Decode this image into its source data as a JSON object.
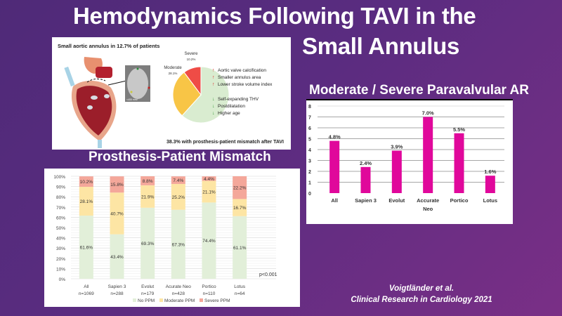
{
  "title": {
    "line1": "Hemodynamics Following TAVI in the",
    "line2": "Small Annulus"
  },
  "colors": {
    "background": "#5a2c80",
    "no_ppm": "#e2efd9",
    "moderate_ppm": "#fde5a4",
    "severe_ppm": "#f4a79a",
    "par_bar": "#e0089b",
    "pie_none": "#d9ecd0",
    "pie_moderate": "#f8c546",
    "pie_severe": "#ef4c46"
  },
  "summary": {
    "heading": "Small aortic annulus in 12.7% of patients",
    "pie_labels": {
      "severe": "Severe",
      "severe_value": "10.2%",
      "moderate": "Moderate",
      "moderate_value": "28.1%"
    },
    "pie_slices": [
      {
        "name": "None",
        "value": 61.7
      },
      {
        "name": "Moderate",
        "value": 28.1
      },
      {
        "name": "Severe",
        "value": 10.2
      }
    ],
    "image_label": "<400 mm²",
    "risk_increase": [
      "Aortic valve calcification",
      "Smaller annulus area",
      "Lower stroke volume index"
    ],
    "risk_decrease": [
      "Self-expanding THV",
      "Postdilatation",
      "Higher age"
    ],
    "footer": "38.3% with prosthesis-patient mismatch after TAVI"
  },
  "chart_data": [
    {
      "type": "bar",
      "stacked": true,
      "title": "Prosthesis-Patient Mismatch",
      "categories": [
        "All",
        "Sapien 3",
        "Evolut",
        "Acurate Neo",
        "Portico",
        "Lotus"
      ],
      "category_n": [
        "n=1069",
        "n=288",
        "n=179",
        "n=428",
        "n=110",
        "n=64"
      ],
      "series": [
        {
          "name": "No PPM",
          "values": [
            61.6,
            43.4,
            69.3,
            67.3,
            74.4,
            61.1
          ],
          "labels": [
            "61.6%",
            "43.4%",
            "69.3%",
            "67.3%",
            "74.4%",
            "61.1%"
          ]
        },
        {
          "name": "Moderate PPM",
          "values": [
            28.1,
            40.7,
            21.9,
            25.2,
            21.1,
            16.7
          ],
          "labels": [
            "28.1%",
            "40.7%",
            "21.9%",
            "25.2%",
            "21.1%",
            "16.7%"
          ]
        },
        {
          "name": "Severe PPM",
          "values": [
            10.2,
            15.8,
            8.8,
            7.4,
            4.4,
            22.2
          ],
          "labels": [
            "10.2%",
            "15.8%",
            "8.8%",
            "7.4%",
            "4.4%",
            "22.2%"
          ]
        }
      ],
      "yticks": [
        "0%",
        "10%",
        "20%",
        "30%",
        "40%",
        "50%",
        "60%",
        "70%",
        "80%",
        "90%",
        "100%"
      ],
      "ylim": [
        0,
        100
      ],
      "annotation": "p<0.001",
      "legend": "bottom",
      "grid": true
    },
    {
      "type": "bar",
      "title": "Moderate / Severe Paravalvular AR",
      "categories": [
        "All",
        "Sapien 3",
        "Evolut",
        "Accurate Neo",
        "Portico",
        "Lotus"
      ],
      "category_lines": [
        [
          "All"
        ],
        [
          "Sapien 3"
        ],
        [
          "Evolut"
        ],
        [
          "Accurate",
          "Neo"
        ],
        [
          "Portico"
        ],
        [
          "Lotus"
        ]
      ],
      "values": [
        4.8,
        2.4,
        3.9,
        7.0,
        5.5,
        1.6
      ],
      "labels": [
        "4.8%",
        "2.4%",
        "3.9%",
        "7.0%",
        "5.5%",
        "1.6%"
      ],
      "yticks": [
        "0",
        "1",
        "2",
        "3",
        "4",
        "5",
        "6",
        "7",
        "8"
      ],
      "ylim": [
        0,
        8
      ],
      "grid": true
    }
  ],
  "citation": {
    "authors": "Voigtländer et al.",
    "journal": "Clinical Research in Cardiology 2021"
  }
}
